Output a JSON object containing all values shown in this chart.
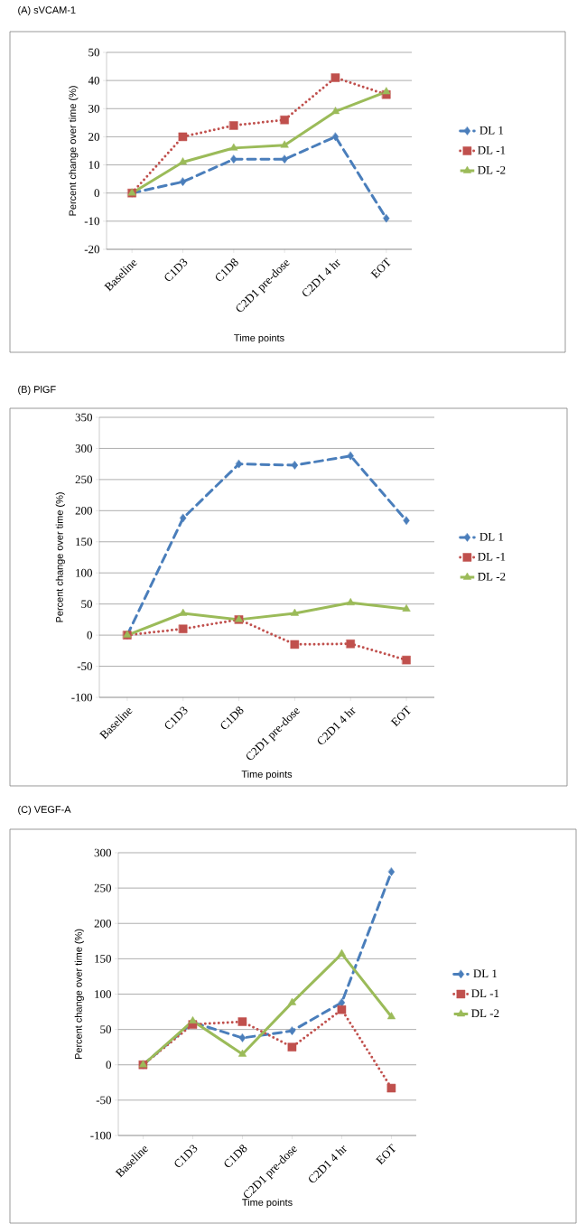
{
  "chart_data": [
    {
      "type": "line",
      "title": "(A) sVCAM-1",
      "xlabel": "Time points",
      "ylabel": "Percent change over time (%)",
      "categories": [
        "Baseline",
        "C1D3",
        "C1D8",
        "C2D1 pre-dose",
        "C2D1 4 hr",
        "EOT"
      ],
      "ylim": [
        -20,
        50
      ],
      "yticks": [
        -20,
        -10,
        0,
        10,
        20,
        30,
        40,
        50
      ],
      "grid": "y",
      "legend": "right",
      "series": [
        {
          "name": "DL 1",
          "color": "#4a7ebb",
          "line_style": "dashed",
          "marker": "diamond",
          "values": [
            0,
            4,
            12,
            12,
            20,
            -9
          ]
        },
        {
          "name": "DL -1",
          "color": "#c0504d",
          "line_style": "dotted",
          "marker": "square",
          "values": [
            0,
            20,
            24,
            26,
            41,
            35
          ]
        },
        {
          "name": "DL -2",
          "color": "#9bbb59",
          "line_style": "solid",
          "marker": "triangle",
          "values": [
            0,
            11,
            16,
            17,
            29,
            36
          ]
        }
      ]
    },
    {
      "type": "line",
      "title": "(B) PlGF",
      "xlabel": "Time points",
      "ylabel": "Percent change over time (%)",
      "categories": [
        "Baseline",
        "C1D3",
        "C1D8",
        "C2D1 pre-dose",
        "C2D1 4 hr",
        "EOT"
      ],
      "ylim": [
        -100,
        350
      ],
      "yticks": [
        -100,
        -50,
        0,
        50,
        100,
        150,
        200,
        250,
        300,
        350
      ],
      "grid": "y",
      "legend": "right",
      "series": [
        {
          "name": "DL 1",
          "color": "#4a7ebb",
          "line_style": "dashed",
          "marker": "diamond",
          "values": [
            0,
            188,
            275,
            273,
            288,
            184
          ]
        },
        {
          "name": "DL -1",
          "color": "#c0504d",
          "line_style": "dotted",
          "marker": "square",
          "values": [
            0,
            10,
            25,
            -15,
            -14,
            -40
          ]
        },
        {
          "name": "DL -2",
          "color": "#9bbb59",
          "line_style": "solid",
          "marker": "triangle",
          "values": [
            0,
            35,
            25,
            35,
            52,
            42
          ]
        }
      ]
    },
    {
      "type": "line",
      "title": "(C) VEGF-A",
      "xlabel": "Time points",
      "ylabel": "Percent change over time (%)",
      "categories": [
        "Baseline",
        "C1D3",
        "C1D8",
        "C2D1 pre-dose",
        "C2D1 4 hr",
        "EOT"
      ],
      "ylim": [
        -100,
        300
      ],
      "yticks": [
        -100,
        -50,
        0,
        50,
        100,
        150,
        200,
        250,
        300
      ],
      "grid": "y",
      "legend": "right",
      "series": [
        {
          "name": "DL 1",
          "color": "#4a7ebb",
          "line_style": "dashed",
          "marker": "diamond",
          "values": [
            0,
            60,
            38,
            48,
            88,
            273
          ]
        },
        {
          "name": "DL -1",
          "color": "#c0504d",
          "line_style": "dotted",
          "marker": "square",
          "values": [
            0,
            57,
            61,
            25,
            78,
            -33
          ]
        },
        {
          "name": "DL -2",
          "color": "#9bbb59",
          "line_style": "solid",
          "marker": "triangle",
          "values": [
            0,
            62,
            15,
            88,
            157,
            68
          ]
        }
      ]
    }
  ]
}
